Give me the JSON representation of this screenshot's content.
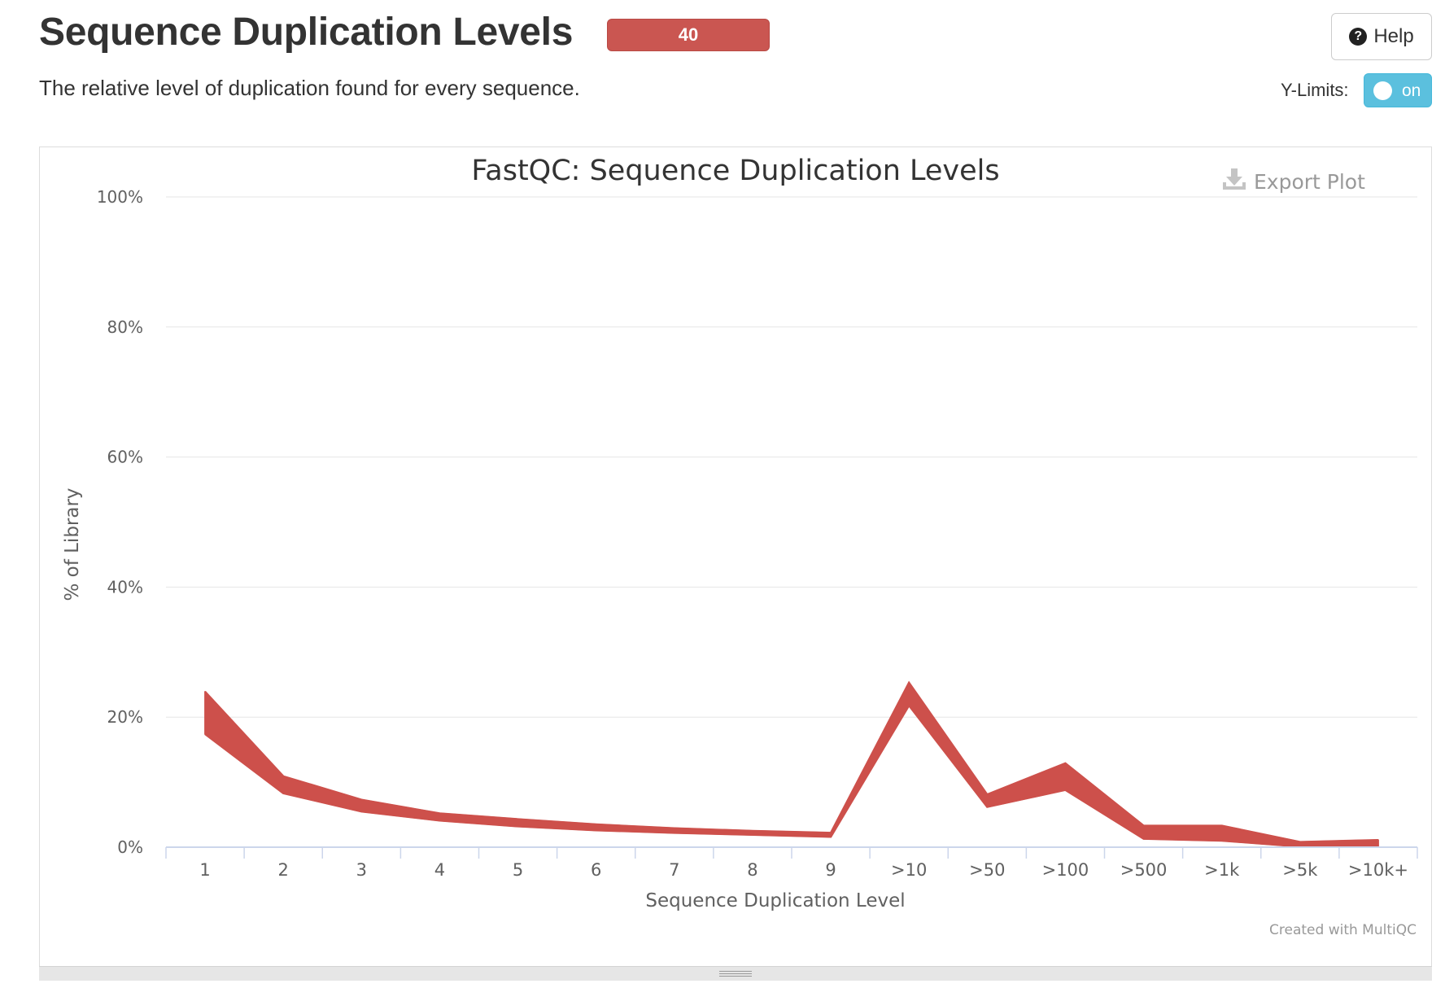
{
  "header": {
    "title": "Sequence Duplication Levels",
    "badge_count": "40",
    "subtitle": "The relative level of duplication found for every sequence.",
    "help_label": "Help",
    "ylimits_label": "Y-Limits:",
    "toggle_label": "on"
  },
  "colors": {
    "series": "#cd504b",
    "badge": "#ca5651",
    "toggle": "#5bc0de"
  },
  "chart_data": {
    "type": "line",
    "title": "FastQC: Sequence Duplication Levels",
    "export_label": "Export Plot",
    "credit": "Created with MultiQC",
    "xlabel": "Sequence Duplication Level",
    "ylabel": "% of Library",
    "categories": [
      "1",
      "2",
      "3",
      "4",
      "5",
      "6",
      "7",
      "8",
      "9",
      ">10",
      ">50",
      ">100",
      ">500",
      ">1k",
      ">5k",
      ">10k+"
    ],
    "y_ticks": [
      "0%",
      "20%",
      "40%",
      "60%",
      "80%",
      "100%"
    ],
    "ylim": [
      0,
      100
    ],
    "grid": true,
    "legend": "none",
    "series_count": 40,
    "band_min": [
      17.4,
      8.3,
      5.5,
      4.1,
      3.2,
      2.6,
      2.2,
      1.9,
      1.6,
      21.8,
      6.2,
      8.8,
      1.3,
      1.0,
      0.1,
      0.1
    ],
    "band_max": [
      23.9,
      10.9,
      7.3,
      5.2,
      4.3,
      3.5,
      2.9,
      2.5,
      2.2,
      25.3,
      8.1,
      12.9,
      3.3,
      3.3,
      0.8,
      1.1
    ]
  }
}
